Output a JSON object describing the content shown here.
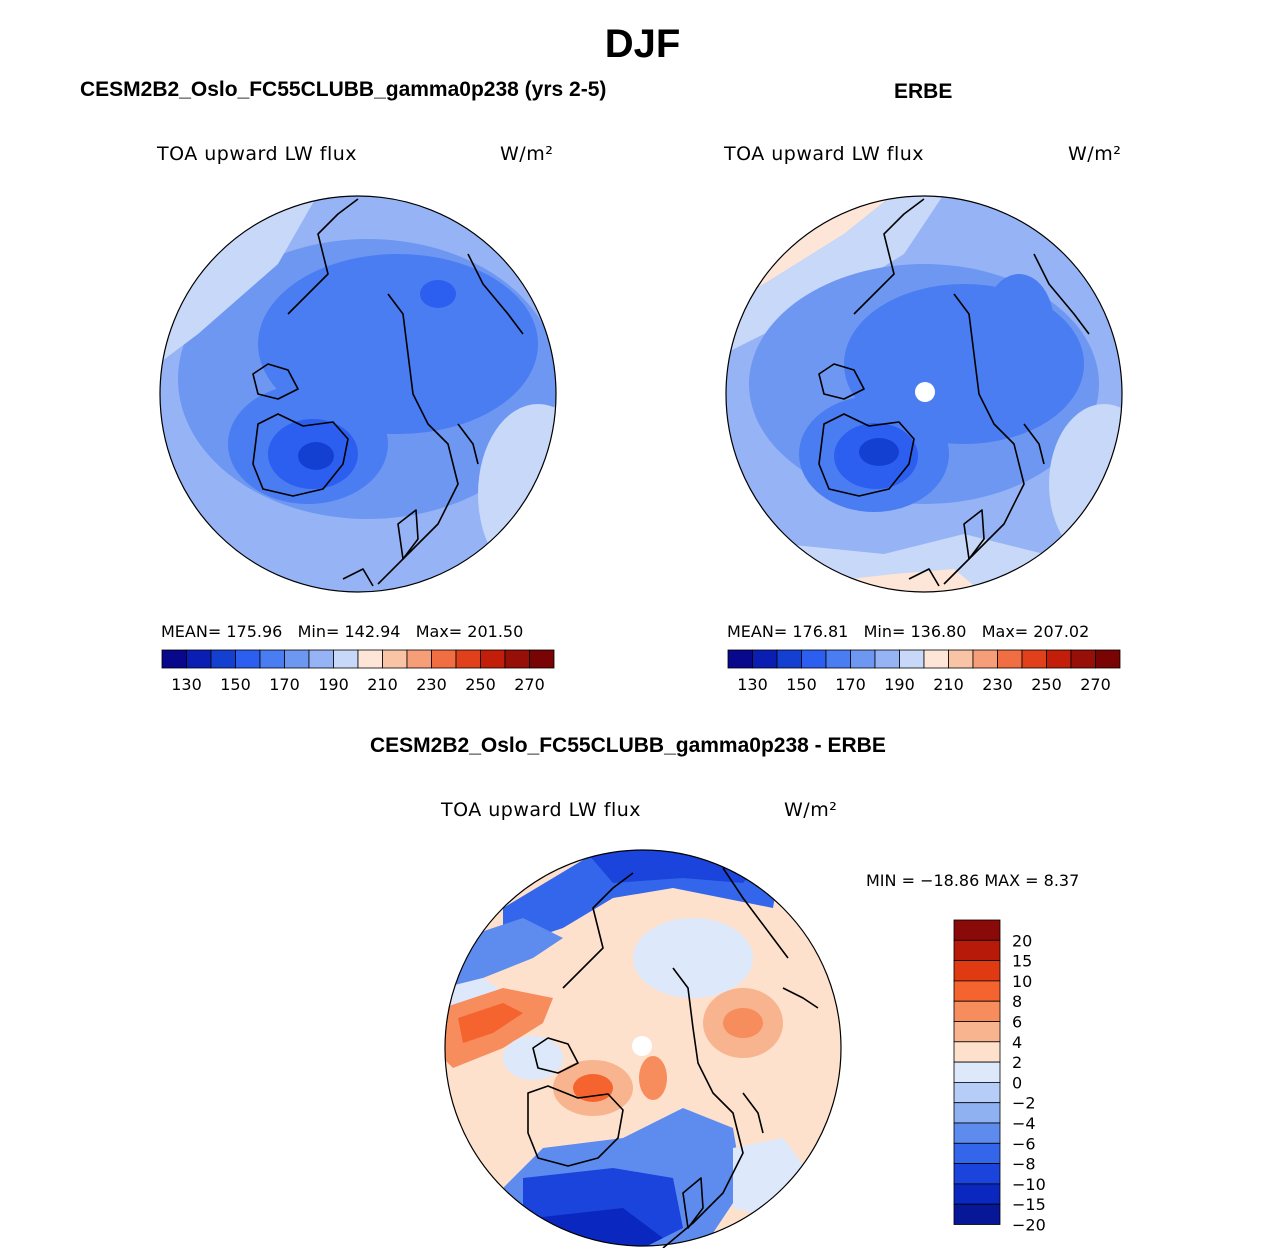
{
  "figure": {
    "title": "DJF"
  },
  "panel_model": {
    "title": "CESM2B2_Oslo_FC55CLUBB_gamma0p238 (yrs 2-5)",
    "variable": "TOA upward LW flux",
    "units": "W/m²",
    "mean_label": "MEAN=",
    "mean": "175.96",
    "min_label": "Min=",
    "min": "142.94",
    "max_label": "Max=",
    "max": "201.50"
  },
  "panel_obs": {
    "title": "ERBE",
    "variable": "TOA upward LW flux",
    "units": "W/m²",
    "mean_label": "MEAN=",
    "mean": "176.81",
    "min_label": "Min=",
    "min": "136.80",
    "max_label": "Max=",
    "max": "207.02"
  },
  "panel_diff": {
    "title": "CESM2B2_Oslo_FC55CLUBB_gamma0p238 - ERBE",
    "variable": "TOA upward LW flux",
    "units": "W/m²",
    "minmax": "MIN = −18.86 MAX =    8.37"
  },
  "colorbar_abs": {
    "colors": [
      "#08088c",
      "#0a1eb4",
      "#1440d2",
      "#2c5ff0",
      "#4a7cf2",
      "#6e97f2",
      "#96b4f5",
      "#c7d8f8",
      "#fde6d8",
      "#f9c3a6",
      "#f69e78",
      "#f06e42",
      "#e0401a",
      "#c21e0a",
      "#961008",
      "#780404"
    ],
    "tick_labels": [
      "130",
      "150",
      "170",
      "190",
      "210",
      "230",
      "250",
      "270"
    ]
  },
  "colorbar_diff": {
    "colors": [
      "#8a0a0a",
      "#b81a0a",
      "#e03a12",
      "#f5642e",
      "#f78c5c",
      "#f8b48e",
      "#fde1cc",
      "#dde9fa",
      "#b6cef7",
      "#8fb1f2",
      "#5e8cee",
      "#3366ea",
      "#1a44dc",
      "#0a28c0",
      "#061898"
    ],
    "tick_labels": [
      "20",
      "15",
      "10",
      "8",
      "6",
      "4",
      "2",
      "0",
      "−2",
      "−4",
      "−6",
      "−8",
      "−10",
      "−15",
      "−20"
    ]
  },
  "chart_data": [
    {
      "type": "heatmap",
      "title": "CESM2B2_Oslo_FC55CLUBB_gamma0p238 (yrs 2-5)",
      "projection": "north polar stereographic",
      "variable": "TOA upward LW flux",
      "units": "W/m2",
      "mean": 175.96,
      "min": 142.94,
      "max": 201.5,
      "color_levels": [
        130,
        140,
        150,
        160,
        170,
        180,
        190,
        200,
        210,
        220,
        230,
        240,
        250,
        260,
        270
      ]
    },
    {
      "type": "heatmap",
      "title": "ERBE",
      "projection": "north polar stereographic",
      "variable": "TOA upward LW flux",
      "units": "W/m2",
      "mean": 176.81,
      "min": 136.8,
      "max": 207.02,
      "color_levels": [
        130,
        140,
        150,
        160,
        170,
        180,
        190,
        200,
        210,
        220,
        230,
        240,
        250,
        260,
        270
      ]
    },
    {
      "type": "heatmap",
      "title": "CESM2B2_Oslo_FC55CLUBB_gamma0p238 - ERBE",
      "projection": "north polar stereographic",
      "variable": "TOA upward LW flux",
      "units": "W/m2",
      "min": -18.86,
      "max": 8.37,
      "color_levels": [
        -20,
        -15,
        -10,
        -8,
        -6,
        -4,
        -2,
        0,
        2,
        4,
        6,
        8,
        10,
        15,
        20
      ]
    }
  ]
}
